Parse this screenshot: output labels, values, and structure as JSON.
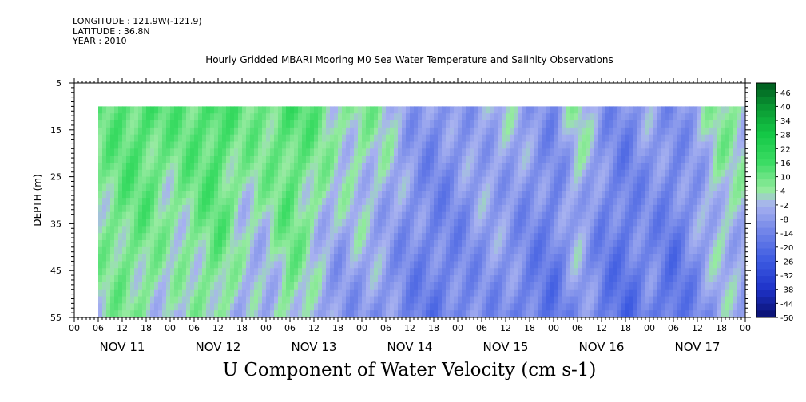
{
  "header": {
    "longitude": "LONGITUDE : 121.9W(-121.9)",
    "latitude": "LATITUDE : 36.8N",
    "year": "YEAR : 2010",
    "title": "Hourly Gridded MBARI Mooring M0 Sea Water Temperature and Salinity Observations"
  },
  "chart_data": {
    "type": "heatmap",
    "title": "U Component of Water Velocity (cm s-1)",
    "xlabel": "",
    "ylabel": "DEPTH (m)",
    "x_hour_ticks": [
      "00",
      "06",
      "12",
      "18",
      "00",
      "06",
      "12",
      "18",
      "00",
      "06",
      "12",
      "18",
      "00",
      "06",
      "12",
      "18",
      "00",
      "06",
      "12",
      "18",
      "00",
      "06",
      "12",
      "18",
      "00",
      "06",
      "12",
      "18",
      "00"
    ],
    "x_day_labels": [
      "NOV 11",
      "NOV 12",
      "NOV 13",
      "NOV 14",
      "NOV 15",
      "NOV 16",
      "NOV 17"
    ],
    "x_range_hours": [
      0,
      168
    ],
    "data_start_hour": 6,
    "y_ticks": [
      5,
      15,
      25,
      35,
      45,
      55
    ],
    "ylim": [
      5,
      55
    ],
    "y_reversed": true,
    "data_depth_range": [
      10,
      55
    ],
    "colorbar_levels": [
      "46",
      "40",
      "34",
      "28",
      "22",
      "16",
      "10",
      "4",
      "-2",
      "-8",
      "-14",
      "-20",
      "-26",
      "-32",
      "-38",
      "-44",
      "-50"
    ],
    "colorbar_range": [
      -50,
      50
    ],
    "column_profiles": [
      [
        6,
        8,
        2
      ],
      [
        12,
        12,
        6
      ],
      [
        18,
        14,
        4
      ],
      [
        24,
        10,
        -2
      ],
      [
        30,
        12,
        2
      ],
      [
        36,
        16,
        6
      ],
      [
        42,
        8,
        -4
      ],
      [
        48,
        10,
        -6
      ],
      [
        54,
        14,
        6
      ],
      [
        60,
        10,
        -4
      ],
      [
        66,
        4,
        -10
      ],
      [
        72,
        6,
        -8
      ],
      [
        78,
        2,
        -10
      ],
      [
        84,
        -6,
        -14
      ],
      [
        90,
        -10,
        -16
      ],
      [
        96,
        -8,
        -14
      ],
      [
        102,
        -4,
        -10
      ],
      [
        108,
        -2,
        -12
      ],
      [
        114,
        -6,
        -16
      ],
      [
        120,
        -10,
        -18
      ],
      [
        126,
        4,
        -8
      ],
      [
        132,
        -8,
        -16
      ],
      [
        138,
        -12,
        -20
      ],
      [
        144,
        -6,
        -14
      ],
      [
        150,
        -10,
        -20
      ],
      [
        156,
        -4,
        -12
      ],
      [
        162,
        6,
        -4
      ],
      [
        168,
        2,
        -6
      ]
    ]
  }
}
